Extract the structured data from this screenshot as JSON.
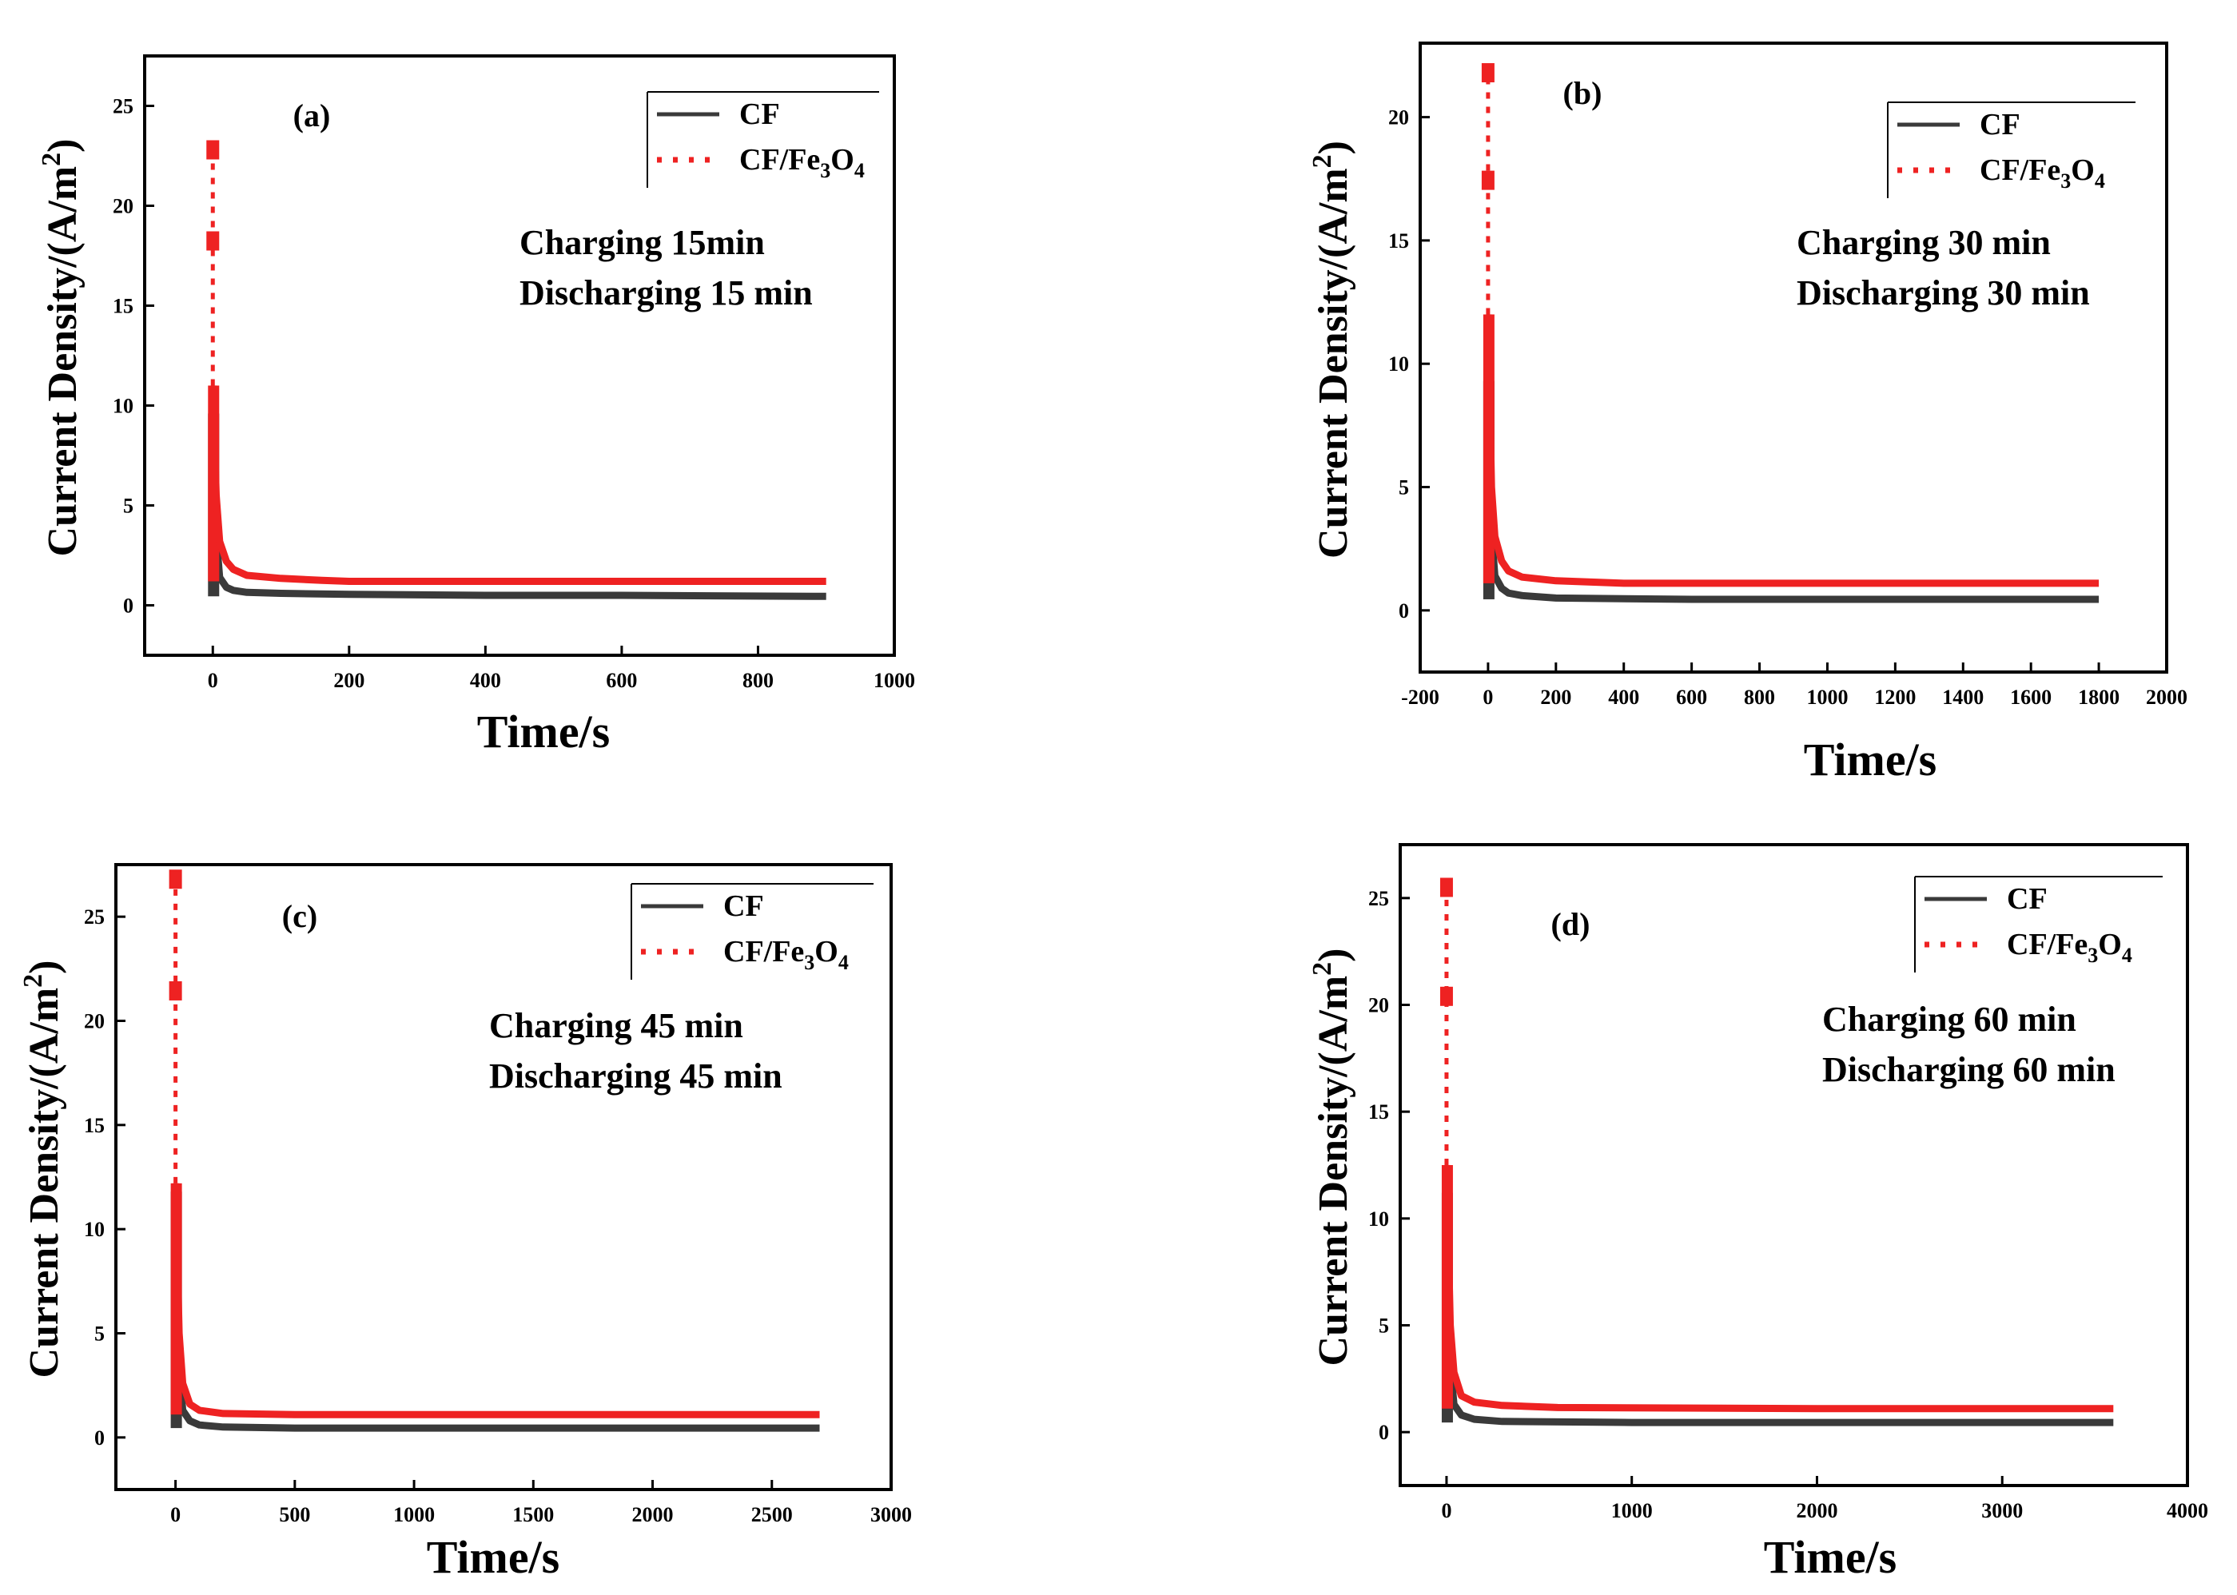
{
  "figure": {
    "colors": {
      "cf": "#3a3a3a",
      "cf_fe3o4": "#ee2222",
      "axis": "#000000"
    },
    "axis_labels": {
      "x": "Time/s",
      "y_prefix": "Current Density/(A/m",
      "y_sup": "2",
      "y_suffix": ")"
    },
    "legend_labels": {
      "cf": "CF",
      "cf_fe3o4_prefix": "CF/Fe",
      "sub3": "3",
      "o": "O",
      "sub4": "4"
    }
  },
  "chart_data": [
    {
      "panel": "(a)",
      "type": "line",
      "title": "(a)",
      "annotation": [
        "Charging 15min",
        "Discharging 15 min"
      ],
      "xlabel": "Time/s",
      "ylabel": "Current Density/(A/m2)",
      "xlim": [
        -100,
        1000
      ],
      "ylim": [
        -2.5,
        27.5
      ],
      "xticks": [
        0,
        200,
        400,
        600,
        800,
        1000
      ],
      "yticks": [
        0,
        5,
        10,
        15,
        20,
        25
      ],
      "legend": [
        "CF",
        "CF/Fe3O4"
      ],
      "legend_position": "top-right",
      "series": [
        {
          "name": "CF",
          "peak": 9.6,
          "x": [
            0,
            5,
            10,
            20,
            30,
            50,
            100,
            200,
            400,
            600,
            900
          ],
          "y": [
            9.6,
            3.5,
            1.4,
            0.9,
            0.75,
            0.65,
            0.6,
            0.55,
            0.5,
            0.5,
            0.45
          ]
        },
        {
          "name": "CF/Fe3O4",
          "peak": 22.8,
          "x": [
            0,
            5,
            10,
            20,
            30,
            50,
            100,
            160,
            200,
            400,
            600,
            900
          ],
          "y": [
            11.0,
            5.5,
            3.2,
            2.2,
            1.8,
            1.5,
            1.35,
            1.25,
            1.2,
            1.2,
            1.2,
            1.2
          ]
        }
      ]
    },
    {
      "panel": "(b)",
      "type": "line",
      "title": "(b)",
      "annotation": [
        "Charging 30 min",
        "Discharging 30 min"
      ],
      "xlabel": "Time/s",
      "ylabel": "Current Density/(A/m2)",
      "xlim": [
        -200,
        2000
      ],
      "ylim": [
        -2.5,
        23
      ],
      "xticks": [
        -200,
        0,
        200,
        400,
        600,
        800,
        1000,
        1200,
        1400,
        1600,
        1800,
        2000
      ],
      "yticks": [
        0,
        5,
        10,
        15,
        20
      ],
      "legend": [
        "CF",
        "CF/Fe3O4"
      ],
      "legend_position": "top-right",
      "series": [
        {
          "name": "CF",
          "peak": 9.3,
          "x": [
            0,
            10,
            20,
            40,
            60,
            100,
            200,
            600,
            1200,
            1800
          ],
          "y": [
            9.3,
            3.2,
            1.4,
            0.9,
            0.7,
            0.6,
            0.5,
            0.45,
            0.45,
            0.45
          ]
        },
        {
          "name": "CF/Fe3O4",
          "peak": 21.8,
          "x": [
            0,
            10,
            20,
            40,
            60,
            100,
            200,
            400,
            1000,
            1800
          ],
          "y": [
            12.0,
            5.0,
            3.0,
            2.0,
            1.6,
            1.35,
            1.2,
            1.1,
            1.1,
            1.1
          ]
        }
      ]
    },
    {
      "panel": "(c)",
      "type": "line",
      "title": "(c)",
      "annotation": [
        "Charging 45 min",
        "Discharging 45 min"
      ],
      "xlabel": "Time/s",
      "ylabel": "Current Density/(A/m2)",
      "xlim": [
        -250,
        3000
      ],
      "ylim": [
        -2.5,
        27.5
      ],
      "xticks": [
        0,
        500,
        1000,
        1500,
        2000,
        2500,
        3000
      ],
      "yticks": [
        0,
        5,
        10,
        15,
        20,
        25
      ],
      "legend": [
        "CF",
        "CF/Fe3O4"
      ],
      "legend_position": "top-right",
      "series": [
        {
          "name": "CF",
          "peak": 11.8,
          "x": [
            0,
            15,
            30,
            60,
            100,
            200,
            500,
            1500,
            2700
          ],
          "y": [
            11.8,
            3.5,
            1.3,
            0.8,
            0.6,
            0.5,
            0.45,
            0.45,
            0.45
          ]
        },
        {
          "name": "CF/Fe3O4",
          "peak": 26.8,
          "x": [
            0,
            15,
            30,
            60,
            100,
            200,
            500,
            1500,
            2700
          ],
          "y": [
            12.2,
            5.0,
            2.6,
            1.6,
            1.3,
            1.15,
            1.1,
            1.1,
            1.1
          ]
        }
      ]
    },
    {
      "panel": "(d)",
      "type": "line",
      "title": "(d)",
      "annotation": [
        "Charging 60 min",
        "Discharging 60 min"
      ],
      "xlabel": "Time/s",
      "ylabel": "Current Density/(A/m2)",
      "xlim": [
        -250,
        4000
      ],
      "ylim": [
        -2.5,
        27.5
      ],
      "xticks": [
        0,
        1000,
        2000,
        3000,
        4000
      ],
      "yticks": [
        0,
        5,
        10,
        15,
        20,
        25
      ],
      "legend": [
        "CF",
        "CF/Fe3O4"
      ],
      "legend_position": "top-right",
      "series": [
        {
          "name": "CF",
          "peak": 11.2,
          "x": [
            0,
            20,
            40,
            80,
            150,
            300,
            1000,
            2000,
            3600
          ],
          "y": [
            11.2,
            3.2,
            1.3,
            0.8,
            0.6,
            0.5,
            0.45,
            0.45,
            0.45
          ]
        },
        {
          "name": "CF/Fe3O4",
          "peak": 25.5,
          "x": [
            0,
            20,
            40,
            80,
            150,
            300,
            600,
            2000,
            3600
          ],
          "y": [
            12.5,
            5.0,
            2.8,
            1.7,
            1.4,
            1.25,
            1.15,
            1.1,
            1.1
          ]
        }
      ]
    }
  ]
}
